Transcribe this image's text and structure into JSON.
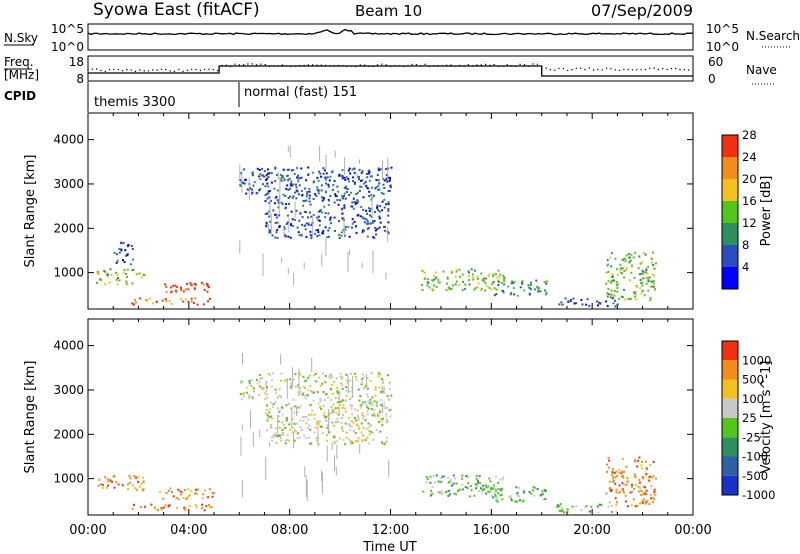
{
  "header": {
    "station": "Syowa East (fitACF)",
    "beam": "Beam 10",
    "date": "07/Sep/2009"
  },
  "strip_labels": {
    "nsky": "N.Sky",
    "nsearch": "N.Search",
    "freq_line1": "Freq.",
    "freq_line2": "[MHz]",
    "nave": "Nave",
    "cpid": "CPID",
    "nsky_ticks": [
      "10^5",
      "10^0"
    ],
    "nsearch_ticks": [
      "10^5",
      "10^0"
    ],
    "freq_ticks": [
      "18",
      "8"
    ],
    "nave_ticks": [
      "60",
      "0"
    ]
  },
  "cpid_modes": [
    {
      "label": "themis 3300",
      "start_hour": 0,
      "end_hour": 6
    },
    {
      "label": "normal (fast) 151",
      "start_hour": 6,
      "end_hour": 24
    }
  ],
  "chart_data": [
    {
      "type": "heatmap",
      "title": "",
      "xlabel": "Time UT",
      "ylabel": "Slant Range [km]",
      "x_ticks": [
        "00:00",
        "04:00",
        "08:00",
        "12:00",
        "16:00",
        "20:00",
        "00:00"
      ],
      "y_ticks": [
        "1000",
        "2000",
        "3000",
        "4000"
      ],
      "xlim_hours": [
        0,
        24
      ],
      "ylim_km": [
        180,
        4600
      ],
      "colorbar": {
        "label": "Power [dB]",
        "ticks": [
          "4",
          "8",
          "12",
          "16",
          "20",
          "24",
          "28"
        ],
        "colors": [
          "#0000ff",
          "#2b4fc0",
          "#2f8f5f",
          "#52c41a",
          "#f2c020",
          "#f28c1a",
          "#f03010"
        ]
      },
      "echo_regions": [
        {
          "t0": 1.6,
          "t1": 5.0,
          "r0": 300,
          "r1": 450,
          "level": 5
        },
        {
          "t0": 2.8,
          "t1": 5.0,
          "r0": 550,
          "r1": 800,
          "level": 6
        },
        {
          "t0": 0.3,
          "t1": 2.2,
          "r0": 750,
          "r1": 1100,
          "level": 3
        },
        {
          "t0": 1.0,
          "t1": 1.8,
          "r0": 1200,
          "r1": 1700,
          "level": 1
        },
        {
          "t0": 6.0,
          "t1": 7.2,
          "r0": 2800,
          "r1": 3400,
          "level": 1
        },
        {
          "t0": 7.0,
          "t1": 12.0,
          "r0": 1800,
          "r1": 3400,
          "level": 1
        },
        {
          "t0": 13.2,
          "t1": 16.5,
          "r0": 600,
          "r1": 1100,
          "level": 3
        },
        {
          "t0": 16.0,
          "t1": 18.2,
          "r0": 500,
          "r1": 850,
          "level": 2
        },
        {
          "t0": 18.5,
          "t1": 21.0,
          "r0": 250,
          "r1": 450,
          "level": 1
        },
        {
          "t0": 20.5,
          "t1": 22.5,
          "r0": 400,
          "r1": 1500,
          "level": 3
        }
      ]
    },
    {
      "type": "heatmap",
      "title": "",
      "xlabel": "Time UT",
      "ylabel": "Slant Range [km]",
      "x_ticks": [
        "00:00",
        "04:00",
        "08:00",
        "12:00",
        "16:00",
        "20:00",
        "00:00"
      ],
      "y_ticks": [
        "1000",
        "2000",
        "3000",
        "4000"
      ],
      "xlim_hours": [
        0,
        24
      ],
      "ylim_km": [
        180,
        4600
      ],
      "colorbar": {
        "label": "Velocity [m s^-1]",
        "ticks": [
          "1000",
          "500",
          "100",
          "25",
          "-25",
          "-100",
          "-500",
          "-1000"
        ],
        "colors": [
          "#1a30c8",
          "#2e5fa8",
          "#2f8f5f",
          "#52c41a",
          "#c8c8c8",
          "#f2c020",
          "#f28c1a",
          "#f03010"
        ]
      },
      "echo_regions": [
        {
          "t0": 1.6,
          "t1": 5.0,
          "r0": 300,
          "r1": 450,
          "level": 6
        },
        {
          "t0": 2.8,
          "t1": 5.0,
          "r0": 550,
          "r1": 800,
          "level": 6
        },
        {
          "t0": 0.3,
          "t1": 2.2,
          "r0": 750,
          "r1": 1100,
          "level": 6
        },
        {
          "t0": 6.0,
          "t1": 7.2,
          "r0": 2800,
          "r1": 3400,
          "level": 4
        },
        {
          "t0": 7.0,
          "t1": 12.0,
          "r0": 1800,
          "r1": 3400,
          "level": 4
        },
        {
          "t0": 13.2,
          "t1": 16.5,
          "r0": 600,
          "r1": 1100,
          "level": 3
        },
        {
          "t0": 16.0,
          "t1": 18.2,
          "r0": 500,
          "r1": 850,
          "level": 3
        },
        {
          "t0": 18.5,
          "t1": 21.0,
          "r0": 250,
          "r1": 450,
          "level": 3
        },
        {
          "t0": 20.5,
          "t1": 22.5,
          "r0": 400,
          "r1": 1500,
          "level": 6
        }
      ]
    }
  ]
}
